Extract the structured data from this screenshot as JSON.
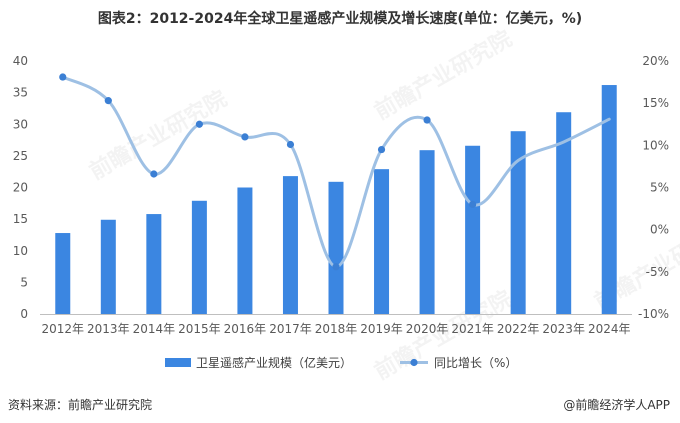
{
  "title": "图表2：2012-2024年全球卫星遥感产业规模及增长速度(单位：亿美元，%)",
  "source": "资料来源：前瞻产业研究院",
  "credit": "@前瞻经济学人APP",
  "watermark": "前瞻产业研究院",
  "colors": {
    "bar": "#3b86e1",
    "line": "#9ec0e4",
    "marker": "#3b7fd4",
    "axis": "#bfbfbf"
  },
  "chart_data": {
    "type": "bar",
    "categories": [
      "2012年",
      "2013年",
      "2014年",
      "2015年",
      "2016年",
      "2017年",
      "2018年",
      "2019年",
      "2020年",
      "2021年",
      "2022年",
      "2023年",
      "2024年"
    ],
    "series": [
      {
        "name": "卫星遥感产业规模（亿美元）",
        "type": "bar",
        "axis": "left",
        "values": [
          12.8,
          14.9,
          15.8,
          17.9,
          20.0,
          21.8,
          20.9,
          22.9,
          25.9,
          26.6,
          28.9,
          31.9,
          36.2
        ]
      },
      {
        "name": "同比增长（%）",
        "type": "line",
        "axis": "right",
        "values": [
          18.1,
          15.3,
          6.6,
          12.5,
          11.0,
          10.1,
          -4.4,
          9.5,
          13.0,
          3.0,
          8.2,
          10.4,
          13.1
        ],
        "markers": [
          true,
          true,
          true,
          true,
          true,
          true,
          true,
          true,
          true,
          true,
          false,
          false,
          false
        ]
      }
    ],
    "left_axis": {
      "min": 0,
      "max": 40,
      "step": 5,
      "ticks": [
        "0",
        "5",
        "10",
        "15",
        "20",
        "25",
        "30",
        "35",
        "40"
      ]
    },
    "right_axis": {
      "min": -10,
      "max": 20,
      "step": 5,
      "ticks": [
        "-10%",
        "-5%",
        "0%",
        "5%",
        "10%",
        "15%",
        "20%"
      ]
    },
    "legend": "bottom",
    "grid": false
  }
}
